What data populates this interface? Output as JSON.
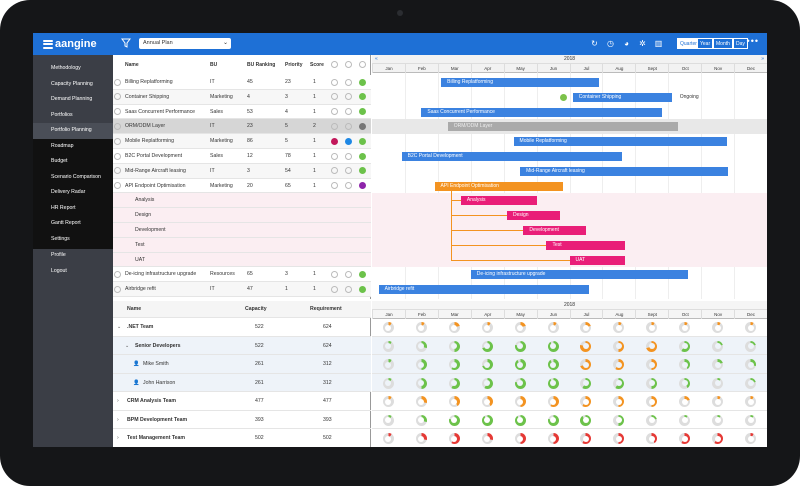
{
  "app": {
    "logo_text": "aangine"
  },
  "toolbar": {
    "plan_select": "Annual Plan",
    "periods": [
      "Quarter",
      "Year",
      "Month",
      "Day"
    ],
    "icons": [
      "refresh-icon",
      "clock-icon",
      "pie-chart-icon",
      "settings-icon",
      "bar-chart-icon"
    ]
  },
  "sidebar": {
    "items": [
      "Methodology",
      "Capacity Planning",
      "Demand Planning",
      "Portfolios",
      "Portfolio Planning",
      "Roadmap",
      "Budget",
      "Scenario Comparison",
      "Delivery Radar",
      "HR Report",
      "Gantt Report",
      "Settings",
      "Profile",
      "Logout"
    ]
  },
  "task_table": {
    "headers": [
      "Name",
      "BU",
      "BU Ranking",
      "Priority",
      "Score"
    ],
    "rows": [
      {
        "name": "Billing Replatforming",
        "bu": "IT",
        "rank": "45",
        "priority": "23",
        "score": "1"
      },
      {
        "name": "Container Shipping",
        "bu": "Marketing",
        "rank": "4",
        "priority": "3",
        "score": "1"
      },
      {
        "name": "Saas Concurrent Performance",
        "bu": "Sales",
        "rank": "53",
        "priority": "4",
        "score": "1"
      },
      {
        "name": "ORM/ODM Layer",
        "bu": "IT",
        "rank": "23",
        "priority": "5",
        "score": "2"
      },
      {
        "name": "Mobile Replatforming",
        "bu": "Marketing",
        "rank": "86",
        "priority": "5",
        "score": "1"
      },
      {
        "name": "B2C Portal Development",
        "bu": "Sales",
        "rank": "12",
        "priority": "78",
        "score": "1"
      },
      {
        "name": "Mid-Range Aircraft leasing",
        "bu": "IT",
        "rank": "3",
        "priority": "54",
        "score": "1"
      },
      {
        "name": "API Endpoint Optimisation",
        "bu": "Marketing",
        "rank": "20",
        "priority": "65",
        "score": "1"
      },
      {
        "name": "Analysis",
        "bu": "",
        "rank": "",
        "priority": "",
        "score": ""
      },
      {
        "name": "Design",
        "bu": "",
        "rank": "",
        "priority": "",
        "score": ""
      },
      {
        "name": "Development",
        "bu": "",
        "rank": "",
        "priority": "",
        "score": ""
      },
      {
        "name": "Test",
        "bu": "",
        "rank": "",
        "priority": "",
        "score": ""
      },
      {
        "name": "UAT",
        "bu": "",
        "rank": "",
        "priority": "",
        "score": ""
      },
      {
        "name": "De-icing infrastructure upgrade",
        "bu": "Resources",
        "rank": "65",
        "priority": "3",
        "score": "1"
      },
      {
        "name": "Airbridge refit",
        "bu": "IT",
        "rank": "47",
        "priority": "1",
        "score": "1"
      }
    ]
  },
  "gantt": {
    "year": "2018",
    "months": [
      "Jan",
      "Feb",
      "Mar",
      "Apr",
      "May",
      "Jun",
      "Jul",
      "Aug",
      "Sept",
      "Oct",
      "Nov",
      "Dec"
    ],
    "bars": [
      "Billing Replatforming",
      "Container Shipping",
      "Saas Concurrent Performance",
      "ORM/ODM Layer",
      "Mobile Replatforming",
      "B2C Portal Development",
      "Mid-Range Aircraft leasing",
      "API Endpoint Optimisation",
      "Analysis",
      "Design",
      "Development",
      "Test",
      "UAT",
      "De-icing infrastructure upgrade",
      "Airbridge refit"
    ],
    "ongoing_label": "Ongoing"
  },
  "resource_table": {
    "headers": [
      "Name",
      "Capacity",
      "Requirement"
    ],
    "rows": [
      {
        "name": ".NET Team",
        "capacity": "522",
        "requirement": "624"
      },
      {
        "name": "Senior Developers",
        "capacity": "522",
        "requirement": "624"
      },
      {
        "name": "Mike Smith",
        "capacity": "261",
        "requirement": "312"
      },
      {
        "name": "John Harrison",
        "capacity": "261",
        "requirement": "312"
      },
      {
        "name": "CRM Analysis Team",
        "capacity": "477",
        "requirement": "477"
      },
      {
        "name": "BPM Development Team",
        "capacity": "393",
        "requirement": "393"
      },
      {
        "name": "Test Management Team",
        "capacity": "502",
        "requirement": "502"
      }
    ]
  },
  "colors": {
    "topbar": "#1e70d6",
    "sidebar": "#3b3e46",
    "bar_blue": "#3b82e0",
    "bar_orange": "#f39321",
    "bar_pink": "#e91e78",
    "green": "#6cc24a"
  }
}
